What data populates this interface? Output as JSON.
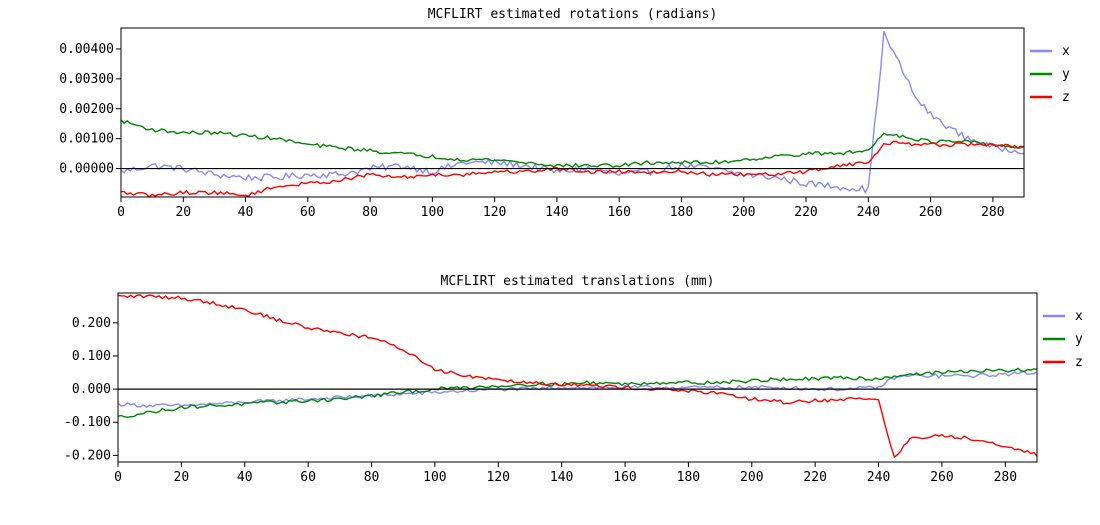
{
  "chart_data": [
    {
      "type": "line",
      "title": "MCFLIRT estimated rotations (radians)",
      "xlabel": "",
      "ylabel": "",
      "xlim": [
        0,
        290
      ],
      "ylim": [
        -0.00095,
        0.0047
      ],
      "xticks": [
        0,
        20,
        40,
        60,
        80,
        100,
        120,
        140,
        160,
        180,
        200,
        220,
        240,
        260,
        280
      ],
      "yticks": [
        0.0,
        0.001,
        0.002,
        0.003,
        0.004
      ],
      "ytick_labels": [
        "0.00000",
        "0.00100",
        "0.00200",
        "0.00300",
        "0.00400"
      ],
      "zero_line": true,
      "legend": "right",
      "x": [
        0,
        10,
        20,
        30,
        40,
        50,
        60,
        70,
        80,
        90,
        100,
        110,
        120,
        130,
        140,
        150,
        160,
        170,
        180,
        190,
        200,
        210,
        220,
        230,
        240,
        245,
        250,
        255,
        260,
        270,
        280,
        290
      ],
      "series": [
        {
          "name": "x",
          "color": "#8888ff",
          "values": [
            -0.0001,
            0.0001,
            0.0,
            -0.0002,
            -0.0003,
            -0.0003,
            -0.0002,
            -0.0002,
            0.0,
            0.0001,
            -0.0001,
            0.0002,
            0.0002,
            0.0001,
            -0.0001,
            0.0,
            -0.0002,
            -0.0001,
            0.0001,
            0.0,
            -0.0002,
            -0.0003,
            -0.0005,
            -0.0006,
            -0.0007,
            0.0045,
            0.0035,
            0.0024,
            0.0018,
            0.0011,
            0.0007,
            0.0006
          ]
        },
        {
          "name": "y",
          "color": "#008800",
          "values": [
            0.0016,
            0.0013,
            0.0012,
            0.0012,
            0.0011,
            0.001,
            0.0008,
            0.0007,
            0.0006,
            0.0005,
            0.0004,
            0.0003,
            0.0003,
            0.0002,
            0.0001,
            0.0001,
            0.0001,
            0.0002,
            0.0002,
            0.0002,
            0.0003,
            0.0004,
            0.0005,
            0.0005,
            0.0006,
            0.0012,
            0.0011,
            0.001,
            0.0009,
            0.0009,
            0.0008,
            0.0007
          ]
        },
        {
          "name": "z",
          "color": "#ff0000",
          "values": [
            -0.0008,
            -0.0009,
            -0.0008,
            -0.0008,
            -0.0009,
            -0.0006,
            -0.0005,
            -0.0004,
            -0.0002,
            -0.0003,
            -0.0002,
            -0.0002,
            -0.0001,
            -0.0001,
            0.0,
            -0.0001,
            -0.0001,
            -0.0001,
            -0.0001,
            -0.0002,
            -0.0002,
            -0.0002,
            -0.0001,
            0.0001,
            0.0002,
            0.0008,
            0.0009,
            0.0008,
            0.0008,
            0.0008,
            0.0008,
            0.0007
          ]
        }
      ]
    },
    {
      "type": "line",
      "title": "MCFLIRT estimated translations (mm)",
      "xlabel": "",
      "ylabel": "",
      "xlim": [
        0,
        290
      ],
      "ylim": [
        -0.22,
        0.29
      ],
      "xticks": [
        0,
        20,
        40,
        60,
        80,
        100,
        120,
        140,
        160,
        180,
        200,
        220,
        240,
        260,
        280
      ],
      "yticks": [
        -0.2,
        -0.1,
        0.0,
        0.1,
        0.2
      ],
      "ytick_labels": [
        "-0.200",
        "-0.100",
        "0.000",
        "0.100",
        "0.200"
      ],
      "zero_line": true,
      "legend": "right",
      "x": [
        0,
        10,
        20,
        30,
        40,
        50,
        60,
        70,
        80,
        90,
        100,
        110,
        120,
        130,
        140,
        150,
        160,
        170,
        180,
        190,
        200,
        210,
        220,
        230,
        240,
        245,
        250,
        260,
        270,
        280,
        290
      ],
      "series": [
        {
          "name": "x",
          "color": "#8888ff",
          "values": [
            -0.045,
            -0.05,
            -0.05,
            -0.045,
            -0.04,
            -0.035,
            -0.03,
            -0.025,
            -0.02,
            -0.015,
            -0.01,
            -0.005,
            0.0,
            0.0,
            0.005,
            0.005,
            0.005,
            0.005,
            0.005,
            0.005,
            0.005,
            0.005,
            0.0,
            0.0,
            0.005,
            0.035,
            0.04,
            0.04,
            0.04,
            0.045,
            0.05
          ]
        },
        {
          "name": "y",
          "color": "#008800",
          "values": [
            -0.085,
            -0.07,
            -0.055,
            -0.05,
            -0.045,
            -0.04,
            -0.035,
            -0.03,
            -0.02,
            -0.01,
            0.0,
            0.005,
            0.01,
            0.015,
            0.015,
            0.02,
            0.015,
            0.02,
            0.02,
            0.02,
            0.025,
            0.03,
            0.03,
            0.035,
            0.03,
            0.04,
            0.045,
            0.05,
            0.055,
            0.055,
            0.06
          ]
        },
        {
          "name": "z",
          "color": "#ff0000",
          "values": [
            0.28,
            0.28,
            0.275,
            0.26,
            0.24,
            0.21,
            0.185,
            0.17,
            0.155,
            0.12,
            0.06,
            0.04,
            0.03,
            0.02,
            0.015,
            0.01,
            0.005,
            0.0,
            -0.005,
            -0.015,
            -0.03,
            -0.04,
            -0.035,
            -0.03,
            -0.03,
            -0.21,
            -0.15,
            -0.14,
            -0.15,
            -0.17,
            -0.2
          ]
        }
      ]
    }
  ]
}
